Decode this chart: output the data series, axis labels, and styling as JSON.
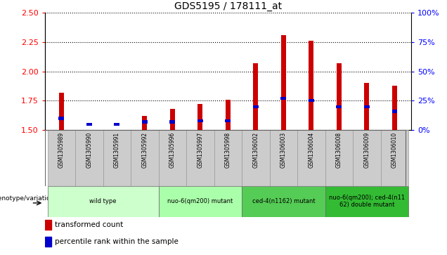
{
  "title": "GDS5195 / 178111_at",
  "samples": [
    "GSM1305989",
    "GSM1305990",
    "GSM1305991",
    "GSM1305992",
    "GSM1305996",
    "GSM1305997",
    "GSM1305998",
    "GSM1306002",
    "GSM1306003",
    "GSM1306004",
    "GSM1306008",
    "GSM1306009",
    "GSM1306010"
  ],
  "red_values": [
    1.82,
    1.5,
    1.5,
    1.62,
    1.68,
    1.72,
    1.76,
    2.07,
    2.31,
    2.26,
    2.07,
    1.9,
    1.88
  ],
  "blue_percentile": [
    10,
    5,
    5,
    7,
    7,
    8,
    8,
    20,
    27,
    25,
    20,
    20,
    16
  ],
  "ymin": 1.5,
  "ymax": 2.5,
  "y2min": 0,
  "y2max": 100,
  "yticks": [
    1.5,
    1.75,
    2.0,
    2.25,
    2.5
  ],
  "y2ticks": [
    0,
    25,
    50,
    75,
    100
  ],
  "groups": [
    {
      "label": "wild type",
      "start": 0,
      "end": 3,
      "color": "#ccffcc"
    },
    {
      "label": "nuo-6(qm200) mutant",
      "start": 4,
      "end": 6,
      "color": "#aaffaa"
    },
    {
      "label": "ced-4(n1162) mutant",
      "start": 7,
      "end": 9,
      "color": "#55cc55"
    },
    {
      "label": "nuo-6(qm200); ced-4(n11\n62) double mutant",
      "start": 10,
      "end": 12,
      "color": "#33bb33"
    }
  ],
  "red_color": "#cc0000",
  "blue_color": "#0000cc",
  "plot_bg": "#ffffff",
  "cell_bg": "#cccccc",
  "legend_red": "transformed count",
  "legend_blue": "percentile rank within the sample",
  "genotype_label": "genotype/variation"
}
